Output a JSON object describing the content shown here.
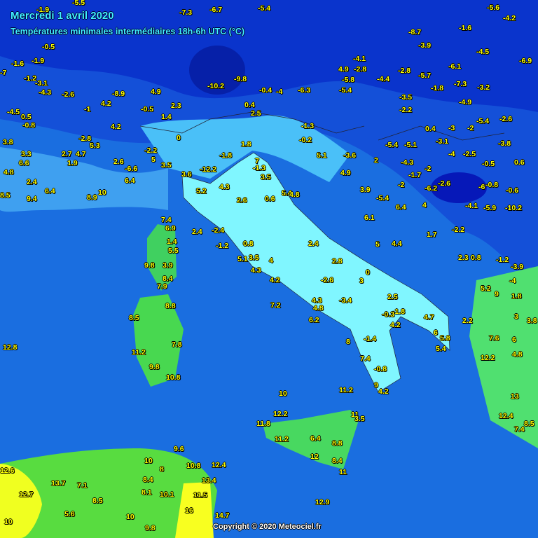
{
  "header": {
    "title": "Mercredi 1 avril 2020",
    "subtitle": "Températures minimales intermédiaires 18h-6h UTC (°C)"
  },
  "footer": {
    "copyright": "Copyright © 2020 Meteociel.fr"
  },
  "colors": {
    "label": "#ffff00",
    "title": "#40f0ff",
    "cold_dark": "#0a28c8",
    "sea": "#1a6ee0",
    "mild": "#80ffff",
    "warm": "#40d850",
    "hot": "#ffff30"
  },
  "values": [
    "7.4",
    "6.9",
    "1.4",
    "5.5",
    "9.8",
    "3.9",
    "8.4",
    "7.9",
    "8.8",
    "8.5",
    "7.8",
    "11.2",
    "9.8",
    "10.8",
    "12.8",
    "2.4",
    "-2.4",
    "-1.2",
    "0.8",
    "5.1",
    "3.5",
    "4.3",
    "4.2",
    "7.2",
    "4",
    "2.4",
    "2.8",
    "-2.6",
    "3",
    "0",
    "4.3",
    "4.8",
    "6.2",
    "-3.4",
    "2.5",
    "-1.8",
    "-0.3",
    "4.2",
    "4.7",
    "6",
    "5.8",
    "5.4",
    "8",
    "-1.4",
    "7.4",
    "-0.8",
    "9",
    "4.2",
    "11.2",
    "10",
    "12.2",
    "11.8",
    "11",
    "3.5",
    "11.2",
    "6.4",
    "8.8",
    "12",
    "8.4",
    "11",
    "12.9",
    "13.7",
    "12.6",
    "12.7",
    "7.1",
    "8.5",
    "5.6",
    "10",
    "9.6",
    "10",
    "8",
    "10.8",
    "12.4",
    "8.4",
    "13.4",
    "8.1",
    "10.1",
    "11.5",
    "16",
    "14.7",
    "10",
    "9.8",
    "5.2",
    "4.3",
    "2.6",
    "0.6",
    "5.4",
    "4.8",
    "3.5",
    "-1.3",
    "7",
    "1.8",
    "-1.8",
    "-12.2",
    "3.6",
    "3.5",
    "6.4",
    "-6.6",
    "-2.2",
    "0",
    "2.6",
    "5",
    "10",
    "8.9",
    "1.4",
    "2.3",
    "4.2",
    "4.9",
    "-0.5",
    "-10.2",
    "-9.8",
    "0.4",
    "2.5",
    "-0.4",
    "-4",
    "-6.3",
    "-5.4",
    "-1.3",
    "-0.2",
    "5.1",
    "4.9",
    "-3.6",
    "2",
    "3.9",
    "-5.4",
    "6.4",
    "6.1",
    "5",
    "4.4",
    "1.7",
    "-2.2",
    "2.3",
    "0.8",
    "-4.1",
    "-5.9",
    "-10.2",
    "-6.2",
    "-2.6",
    "4",
    "-2",
    "-1.7",
    "-4.3",
    "-2",
    "-0.5",
    "0.6",
    "-6",
    "-0.8",
    "-0.6",
    "-3.8",
    "-5.4",
    "-5.1",
    "-3.1",
    "-4",
    "-2.5",
    "0.4",
    "-3",
    "-2",
    "9",
    "5.2",
    "1.8",
    "3",
    "3.8",
    "6",
    "4.8",
    "2.2",
    "7.6",
    "12.2",
    "13",
    "12.4",
    "8.5",
    "7.4",
    "-1.2",
    "-3.9",
    "-4",
    "-5.5",
    "-1.9",
    "-7.3",
    "-6.7",
    "-5.4",
    "-5.6",
    "-4.2",
    "-1.6",
    "-4.5",
    "-6.1",
    "-7.3",
    "-3.2",
    "-6.9",
    "-4.9",
    "-2.6",
    "-5.4",
    "-0.5",
    "-1.6",
    "-1.9",
    "-7",
    "-1.2",
    "-3.1",
    "-4.3",
    "-2.6",
    "-4.5",
    "0.5",
    "-0.8",
    "3.8",
    "3.3",
    "6.6",
    "4.8",
    "2.4",
    "6.4",
    "8.5",
    "9.4",
    "1.9",
    "2.7",
    "4.7",
    "-2.8",
    "5.3",
    "4.2",
    "-1",
    "-8.9",
    "-8.7",
    "-3.9",
    "-5.7",
    "-2.8",
    "-4.4",
    "-1.8",
    "-3.5",
    "-2.2",
    "-5.8",
    "-4.1",
    "-2.8",
    "4.9"
  ]
}
